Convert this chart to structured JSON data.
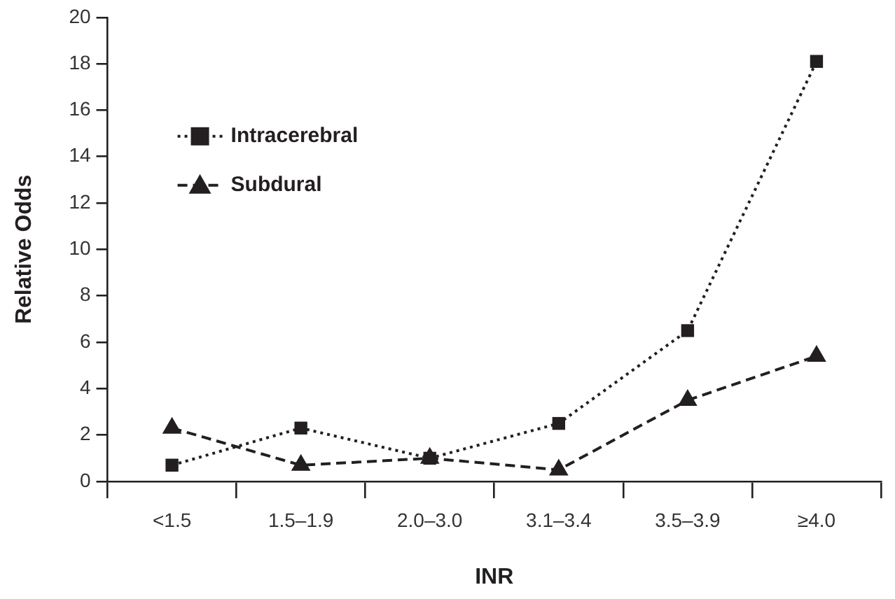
{
  "chart_data": {
    "type": "line",
    "xlabel": "INR",
    "ylabel": "Relative Odds",
    "categories": [
      "<1.5",
      "1.5–1.9",
      "2.0–3.0",
      "3.1–3.4",
      "3.5–3.9",
      "≥4.0"
    ],
    "series": [
      {
        "name": "Intracerebral",
        "color": "#231f20",
        "values": [
          0.7,
          2.3,
          1.0,
          2.5,
          6.5,
          18.1
        ],
        "marker": "square",
        "line_style": "dotted"
      },
      {
        "name": "Subdural",
        "color": "#231f20",
        "values": [
          2.3,
          0.7,
          1.0,
          0.5,
          3.5,
          5.4
        ],
        "marker": "triangle",
        "line_style": "dashed"
      }
    ],
    "ylim": [
      0,
      20
    ],
    "yticks": [
      0,
      2,
      4,
      6,
      8,
      10,
      12,
      14,
      16,
      18,
      20
    ],
    "grid": false,
    "legend": "top left"
  }
}
